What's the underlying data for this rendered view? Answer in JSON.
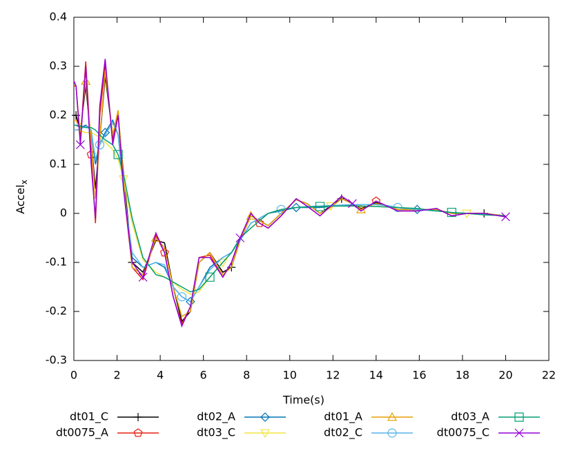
{
  "chart_data": {
    "type": "line",
    "x_label": "Time(s)",
    "y_label": "Accel",
    "y_label_sub": "x",
    "xlim": [
      0,
      22
    ],
    "xticks": [
      0,
      2,
      4,
      6,
      8,
      10,
      12,
      14,
      16,
      18,
      20,
      22
    ],
    "ylim": [
      -0.3,
      0.4
    ],
    "yticks": [
      -0.3,
      -0.2,
      -0.1,
      0,
      0.1,
      0.2,
      0.3,
      0.4
    ],
    "grid": false,
    "legend": "bottom",
    "x": [
      0,
      0.1,
      0.3,
      0.55,
      0.8,
      1.0,
      1.2,
      1.45,
      1.8,
      2.05,
      2.3,
      2.7,
      3.2,
      3.8,
      4.2,
      4.6,
      5.0,
      5.4,
      5.8,
      6.3,
      6.9,
      7.3,
      7.7,
      8.2,
      8.6,
      9.0,
      9.6,
      10.3,
      10.8,
      11.4,
      11.9,
      12.4,
      12.9,
      13.3,
      14.0,
      14.5,
      15.0,
      15.9,
      16.8,
      17.5,
      18.2,
      19.0,
      20.0
    ],
    "series": [
      {
        "name": "dt01_C",
        "color": "#000000",
        "marker": "plus",
        "values": [
          0.2,
          0.2,
          0.17,
          0.26,
          0.15,
          0.05,
          0.15,
          0.28,
          0.16,
          0.2,
          0.08,
          -0.1,
          -0.12,
          -0.055,
          -0.06,
          -0.15,
          -0.22,
          -0.2,
          -0.1,
          -0.08,
          -0.12,
          -0.11,
          -0.055,
          -0.005,
          -0.015,
          -0.025,
          0.0,
          0.028,
          0.02,
          0.0,
          0.015,
          0.03,
          0.02,
          0.01,
          0.022,
          0.015,
          0.008,
          0.008,
          0.008,
          0.0,
          0.0,
          0.0,
          -0.005
        ]
      },
      {
        "name": "dt0075_A",
        "color": "#e51e10",
        "marker": "pentagon",
        "values": [
          0.26,
          0.26,
          0.15,
          0.31,
          0.12,
          -0.02,
          0.2,
          0.305,
          0.15,
          0.21,
          0.05,
          -0.11,
          -0.135,
          -0.045,
          -0.08,
          -0.17,
          -0.225,
          -0.19,
          -0.09,
          -0.085,
          -0.13,
          -0.1,
          -0.05,
          0.0,
          -0.02,
          -0.03,
          -0.005,
          0.03,
          0.015,
          -0.005,
          0.015,
          0.035,
          0.02,
          0.005,
          0.025,
          0.015,
          0.005,
          0.005,
          0.01,
          -0.005,
          0.0,
          0.0,
          -0.007
        ]
      },
      {
        "name": "dt02_A",
        "color": "#0072b2",
        "marker": "diamond",
        "values": [
          0.18,
          0.18,
          0.175,
          0.18,
          0.17,
          0.1,
          0.14,
          0.165,
          0.19,
          0.16,
          0.05,
          -0.09,
          -0.11,
          -0.1,
          -0.11,
          -0.15,
          -0.17,
          -0.18,
          -0.15,
          -0.11,
          -0.09,
          -0.08,
          -0.055,
          -0.02,
          -0.01,
          0.0,
          0.005,
          0.012,
          0.012,
          0.012,
          0.014,
          0.016,
          0.017,
          0.018,
          0.018,
          0.016,
          0.012,
          0.008,
          0.005,
          0.002,
          0.0,
          -0.002,
          -0.005
        ]
      },
      {
        "name": "dt03_C",
        "color": "#f0e442",
        "marker": "triangle-down",
        "values": [
          0.17,
          0.17,
          0.168,
          0.165,
          0.165,
          0.16,
          0.155,
          0.145,
          0.13,
          0.11,
          0.07,
          -0.02,
          -0.095,
          -0.12,
          -0.13,
          -0.14,
          -0.155,
          -0.165,
          -0.16,
          -0.13,
          -0.1,
          -0.08,
          -0.05,
          -0.03,
          -0.015,
          0.0,
          0.008,
          0.012,
          0.013,
          0.014,
          0.015,
          0.015,
          0.015,
          0.015,
          0.014,
          0.013,
          0.012,
          0.01,
          0.005,
          0.002,
          0.0,
          -0.003,
          -0.005
        ]
      },
      {
        "name": "dt01_A",
        "color": "#e69f00",
        "marker": "triangle",
        "values": [
          0.19,
          0.19,
          0.17,
          0.27,
          0.15,
          0.03,
          0.15,
          0.29,
          0.16,
          0.21,
          0.07,
          -0.11,
          -0.125,
          -0.05,
          -0.07,
          -0.15,
          -0.21,
          -0.2,
          -0.1,
          -0.08,
          -0.125,
          -0.11,
          -0.055,
          -0.005,
          -0.015,
          -0.025,
          0.0,
          0.028,
          0.02,
          0.0,
          0.012,
          0.03,
          0.02,
          0.008,
          0.02,
          0.015,
          0.008,
          0.008,
          0.008,
          0.0,
          0.0,
          0.0,
          -0.005
        ]
      },
      {
        "name": "dt02_C",
        "color": "#56b4e9",
        "marker": "circle",
        "values": [
          0.17,
          0.17,
          0.172,
          0.178,
          0.17,
          0.11,
          0.14,
          0.16,
          0.185,
          0.16,
          0.05,
          -0.08,
          -0.11,
          -0.1,
          -0.105,
          -0.15,
          -0.17,
          -0.18,
          -0.15,
          -0.115,
          -0.09,
          -0.08,
          -0.055,
          -0.02,
          -0.01,
          0.0,
          0.008,
          0.012,
          0.014,
          0.015,
          0.016,
          0.017,
          0.018,
          0.018,
          0.018,
          0.016,
          0.012,
          0.008,
          0.005,
          0.002,
          0.0,
          -0.002,
          -0.005
        ]
      },
      {
        "name": "dt03_A",
        "color": "#009e73",
        "marker": "square",
        "values": [
          0.18,
          0.18,
          0.178,
          0.175,
          0.175,
          0.17,
          0.16,
          0.15,
          0.14,
          0.12,
          0.08,
          -0.01,
          -0.09,
          -0.125,
          -0.13,
          -0.14,
          -0.15,
          -0.16,
          -0.155,
          -0.13,
          -0.1,
          -0.08,
          -0.05,
          -0.03,
          -0.015,
          0.0,
          0.008,
          0.012,
          0.013,
          0.014,
          0.015,
          0.015,
          0.015,
          0.015,
          0.014,
          0.013,
          0.012,
          0.01,
          0.005,
          0.002,
          0.0,
          -0.003,
          -0.005
        ]
      },
      {
        "name": "dt0075_C",
        "color": "#9400d3",
        "marker": "cross",
        "values": [
          0.27,
          0.26,
          0.14,
          0.3,
          0.1,
          -0.01,
          0.22,
          0.315,
          0.14,
          0.2,
          0.05,
          -0.1,
          -0.13,
          -0.04,
          -0.08,
          -0.17,
          -0.23,
          -0.19,
          -0.09,
          -0.09,
          -0.13,
          -0.1,
          -0.05,
          0.0,
          -0.02,
          -0.03,
          -0.005,
          0.03,
          0.015,
          -0.005,
          0.015,
          0.035,
          0.02,
          0.005,
          0.025,
          0.015,
          0.005,
          0.005,
          0.01,
          -0.005,
          0.0,
          0.0,
          -0.007
        ]
      }
    ]
  }
}
